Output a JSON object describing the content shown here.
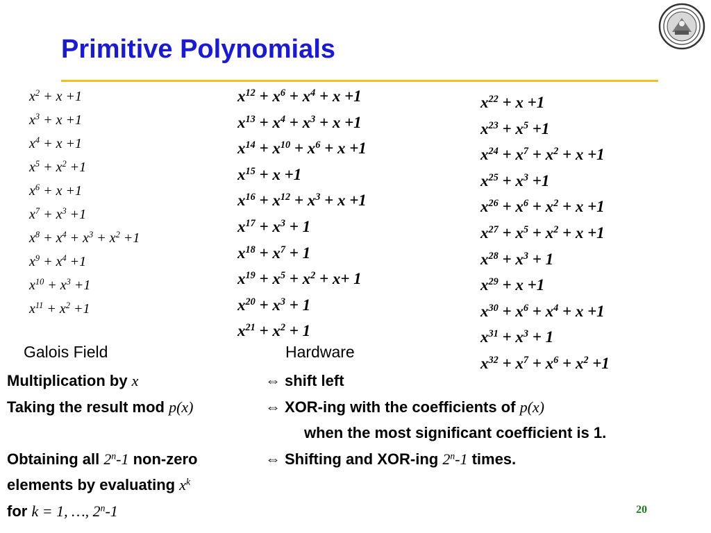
{
  "title": "Primitive Polynomials",
  "colors": {
    "title": "#1a1ad6",
    "rule": "#f0c020",
    "page_number": "#1f7a1f"
  },
  "polynomials": {
    "col1": [
      [
        {
          "t": "x"
        },
        {
          "s": "2"
        },
        {
          "t": " + x +1"
        }
      ],
      [
        {
          "t": "x"
        },
        {
          "s": "3"
        },
        {
          "t": " + x +1"
        }
      ],
      [
        {
          "t": "x"
        },
        {
          "s": "4"
        },
        {
          "t": " + x +1"
        }
      ],
      [
        {
          "t": "x"
        },
        {
          "s": "5"
        },
        {
          "t": " + x"
        },
        {
          "s": "2"
        },
        {
          "t": " +1"
        }
      ],
      [
        {
          "t": "x"
        },
        {
          "s": "6"
        },
        {
          "t": " + x +1"
        }
      ],
      [
        {
          "t": "x"
        },
        {
          "s": "7"
        },
        {
          "t": " + x"
        },
        {
          "s": "3"
        },
        {
          "t": " +1"
        }
      ],
      [
        {
          "t": "x"
        },
        {
          "s": "8"
        },
        {
          "t": " + x"
        },
        {
          "s": "4"
        },
        {
          "t": " + x"
        },
        {
          "s": "3"
        },
        {
          "t": " + x"
        },
        {
          "s": "2"
        },
        {
          "t": " +1"
        }
      ],
      [
        {
          "t": "x"
        },
        {
          "s": "9"
        },
        {
          "t": " + x"
        },
        {
          "s": "4"
        },
        {
          "t": " +1"
        }
      ],
      [
        {
          "t": "x"
        },
        {
          "s": "10"
        },
        {
          "t": " + x"
        },
        {
          "s": "3"
        },
        {
          "t": " +1"
        }
      ],
      [
        {
          "t": "x"
        },
        {
          "s": "11"
        },
        {
          "t": " + x"
        },
        {
          "s": "2"
        },
        {
          "t": " +1"
        }
      ]
    ],
    "col2": [
      [
        {
          "t": "x"
        },
        {
          "s": "12"
        },
        {
          "t": " + x"
        },
        {
          "s": "6"
        },
        {
          "t": " + x"
        },
        {
          "s": "4"
        },
        {
          "t": " + x +1"
        }
      ],
      [
        {
          "t": "x"
        },
        {
          "s": "13"
        },
        {
          "t": " + x"
        },
        {
          "s": "4"
        },
        {
          "t": " + x"
        },
        {
          "s": "3"
        },
        {
          "t": " + x +1"
        }
      ],
      [
        {
          "t": "x"
        },
        {
          "s": "14"
        },
        {
          "t": " + x"
        },
        {
          "s": "10"
        },
        {
          "t": " + x"
        },
        {
          "s": "6"
        },
        {
          "t": " + x +1"
        }
      ],
      [
        {
          "t": "x"
        },
        {
          "s": "15"
        },
        {
          "t": " + x +1"
        }
      ],
      [
        {
          "t": "x"
        },
        {
          "s": "16"
        },
        {
          "t": " + x"
        },
        {
          "s": "12"
        },
        {
          "t": " + x"
        },
        {
          "s": "3"
        },
        {
          "t": " + x +1"
        }
      ],
      [
        {
          "t": "x"
        },
        {
          "s": "17"
        },
        {
          "t": " + x"
        },
        {
          "s": "3"
        },
        {
          "t": " + 1"
        }
      ],
      [
        {
          "t": "x"
        },
        {
          "s": "18"
        },
        {
          "t": " + x"
        },
        {
          "s": "7"
        },
        {
          "t": " + 1"
        }
      ],
      [
        {
          "t": "x"
        },
        {
          "s": "19"
        },
        {
          "t": " + x"
        },
        {
          "s": "5"
        },
        {
          "t": " + x"
        },
        {
          "s": "2"
        },
        {
          "t": " + x+ 1"
        }
      ],
      [
        {
          "t": "x"
        },
        {
          "s": "20"
        },
        {
          "t": " + x"
        },
        {
          "s": "3"
        },
        {
          "t": " + 1"
        }
      ],
      [
        {
          "t": "x"
        },
        {
          "s": "21"
        },
        {
          "t": " + x"
        },
        {
          "s": "2"
        },
        {
          "t": " + 1"
        }
      ]
    ],
    "col3": [
      [
        {
          "t": "x"
        },
        {
          "s": "22"
        },
        {
          "t": " + x +1"
        }
      ],
      [
        {
          "t": "x"
        },
        {
          "s": "23"
        },
        {
          "t": " + x"
        },
        {
          "s": "5"
        },
        {
          "t": " +1"
        }
      ],
      [
        {
          "t": "x"
        },
        {
          "s": "24"
        },
        {
          "t": " + x"
        },
        {
          "s": "7"
        },
        {
          "t": " + x"
        },
        {
          "s": "2"
        },
        {
          "t": " + x +1"
        }
      ],
      [
        {
          "t": "x"
        },
        {
          "s": "25"
        },
        {
          "t": " + x"
        },
        {
          "s": "3"
        },
        {
          "t": " +1"
        }
      ],
      [
        {
          "t": "x"
        },
        {
          "s": "26"
        },
        {
          "t": " + x"
        },
        {
          "s": "6"
        },
        {
          "t": " + x"
        },
        {
          "s": "2"
        },
        {
          "t": " + x +1"
        }
      ],
      [
        {
          "t": "x"
        },
        {
          "s": "27"
        },
        {
          "t": " + x"
        },
        {
          "s": "5"
        },
        {
          "t": " + x"
        },
        {
          "s": "2"
        },
        {
          "t": " + x +1"
        }
      ],
      [
        {
          "t": "x"
        },
        {
          "s": "28"
        },
        {
          "t": " + x"
        },
        {
          "s": "3"
        },
        {
          "t": " + 1"
        }
      ],
      [
        {
          "t": "x"
        },
        {
          "s": "29"
        },
        {
          "t": " + x +1"
        }
      ],
      [
        {
          "t": "x"
        },
        {
          "s": "30"
        },
        {
          "t": " + x"
        },
        {
          "s": "6"
        },
        {
          "t": " + x"
        },
        {
          "s": "4"
        },
        {
          "t": " + x +1"
        }
      ],
      [
        {
          "t": "x"
        },
        {
          "s": "31"
        },
        {
          "t": " + x"
        },
        {
          "s": "3"
        },
        {
          "t": " + 1"
        }
      ],
      [
        {
          "t": "x"
        },
        {
          "s": "32"
        },
        {
          "t": " + x"
        },
        {
          "s": "7"
        },
        {
          "t": " + x"
        },
        {
          "s": "6"
        },
        {
          "t": " + x"
        },
        {
          "s": "2"
        },
        {
          "t": " +1"
        }
      ]
    ]
  },
  "headings": {
    "left": "Galois Field",
    "right": "Hardware"
  },
  "notes": {
    "line1_left": [
      {
        "t": "Multiplication by "
      },
      {
        "i": "x"
      }
    ],
    "line1_right": "shift left",
    "line2_left": [
      {
        "t": "Taking the result mod  "
      },
      {
        "i": "p(x)"
      }
    ],
    "line2_right": [
      {
        "t": "XOR-ing with the coefficients of "
      },
      {
        "i": "p(x)"
      }
    ],
    "line3_right": "when the most significant coefficient is 1.",
    "line4_left": [
      {
        "t": "Obtaining all "
      },
      {
        "i": "2"
      },
      {
        "is": "n"
      },
      {
        "i": "-1"
      },
      {
        "t": " non-zero"
      }
    ],
    "line4_right": [
      {
        "t": "Shifting and XOR-ing "
      },
      {
        "i": "2"
      },
      {
        "is": "n"
      },
      {
        "i": "-1"
      },
      {
        "t": " times."
      }
    ],
    "line5_left": [
      {
        "t": "elements by evaluating "
      },
      {
        "i": "x"
      },
      {
        "is": "k"
      }
    ],
    "line6_left": [
      {
        "t": "for "
      },
      {
        "i": "k = 1, …, 2"
      },
      {
        "is": "n"
      },
      {
        "i": "-1"
      }
    ],
    "equiv_symbol": "⇔"
  },
  "page_number": "20",
  "logo_text": "UNIVERSITY OF CALIFORNIA"
}
